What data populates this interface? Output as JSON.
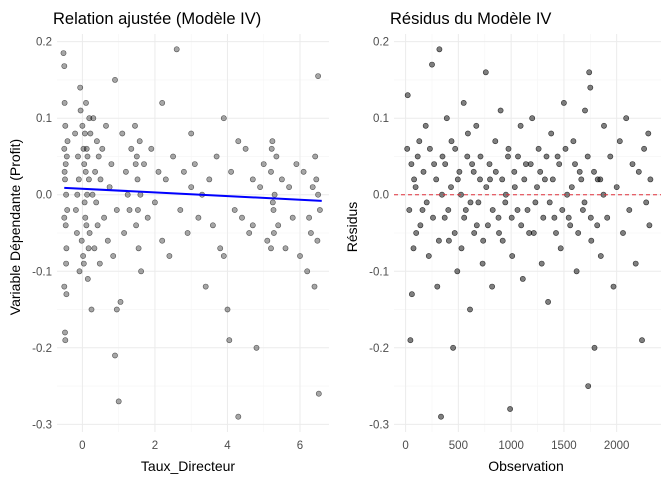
{
  "chart_data": [
    {
      "type": "scatter",
      "title": "Relation ajustée (Modèle IV)",
      "xlabel": "Taux_Directeur",
      "ylabel": "Variable Dépendante (Profit)",
      "xlim": [
        -0.7,
        6.8
      ],
      "ylim": [
        -0.31,
        0.21
      ],
      "xticks": [
        0,
        2,
        4,
        6
      ],
      "yticks": [
        -0.3,
        -0.2,
        -0.1,
        0.0,
        0.1,
        0.2
      ],
      "ytick_labels": [
        "-0.3",
        "-0.2",
        "-0.1",
        "0.0",
        "0.1",
        "0.2"
      ],
      "grid": true,
      "point_color": "#000000",
      "point_alpha": 0.35,
      "fit_line": {
        "x": [
          -0.5,
          6.6
        ],
        "y": [
          0.009,
          -0.008
        ],
        "color": "#0000ff"
      },
      "points": [
        [
          -0.52,
          0.185
        ],
        [
          -0.5,
          0.168
        ],
        [
          -0.48,
          -0.18
        ],
        [
          -0.47,
          -0.19
        ],
        [
          -0.5,
          0.06
        ],
        [
          -0.49,
          0.03
        ],
        [
          -0.46,
          -0.04
        ],
        [
          -0.45,
          0.0
        ],
        [
          -0.47,
          0.09
        ],
        [
          -0.44,
          -0.07
        ],
        [
          -0.5,
          -0.12
        ],
        [
          -0.43,
          0.05
        ],
        [
          -0.49,
          0.12
        ],
        [
          -0.42,
          -0.02
        ],
        [
          -0.48,
          0.02
        ],
        [
          -0.45,
          -0.09
        ],
        [
          -0.41,
          0.07
        ],
        [
          -0.5,
          -0.03
        ],
        [
          -0.46,
          0.04
        ],
        [
          -0.44,
          -0.13
        ],
        [
          -0.2,
          0.08
        ],
        [
          -0.15,
          -0.05
        ],
        [
          -0.1,
          0.02
        ],
        [
          -0.05,
          0.11
        ],
        [
          -0.08,
          -0.1
        ],
        [
          -0.12,
          0.05
        ],
        [
          -0.18,
          -0.02
        ],
        [
          -0.02,
          -0.06
        ],
        [
          -0.06,
          0.14
        ],
        [
          -0.14,
          0.0
        ],
        [
          0.0,
          0.09
        ],
        [
          0.02,
          -0.08
        ],
        [
          0.05,
          0.04
        ],
        [
          0.08,
          -0.03
        ],
        [
          0.1,
          0.12
        ],
        [
          0.12,
          0.06
        ],
        [
          0.15,
          -0.11
        ],
        [
          0.18,
          0.02
        ],
        [
          0.2,
          -0.05
        ],
        [
          0.22,
          0.08
        ],
        [
          0.25,
          -0.15
        ],
        [
          0.28,
          0.0
        ],
        [
          0.3,
          0.1
        ],
        [
          0.33,
          -0.07
        ],
        [
          0.35,
          0.03
        ],
        [
          0.38,
          -0.01
        ],
        [
          0.4,
          0.07
        ],
        [
          0.42,
          -0.04
        ],
        [
          0.45,
          0.05
        ],
        [
          0.48,
          -0.09
        ],
        [
          0.5,
          0.02
        ],
        [
          0.55,
          0.06
        ],
        [
          0.6,
          -0.03
        ],
        [
          0.65,
          0.09
        ],
        [
          0.7,
          -0.06
        ],
        [
          0.75,
          0.01
        ],
        [
          0.8,
          0.04
        ],
        [
          0.85,
          -0.08
        ],
        [
          0.9,
          0.15
        ],
        [
          0.95,
          -0.02
        ],
        [
          0.03,
          0.06
        ],
        [
          0.06,
          -0.01
        ],
        [
          0.09,
          0.03
        ],
        [
          0.11,
          -0.04
        ],
        [
          0.14,
          0.05
        ],
        [
          0.17,
          -0.07
        ],
        [
          0.19,
          0.1
        ],
        [
          0.04,
          -0.09
        ],
        [
          0.07,
          0.08
        ],
        [
          0.13,
          0.0
        ],
        [
          0.9,
          -0.21
        ],
        [
          0.95,
          -0.15
        ],
        [
          1.0,
          -0.27
        ],
        [
          1.05,
          -0.14
        ],
        [
          1.1,
          0.08
        ],
        [
          1.15,
          -0.05
        ],
        [
          1.2,
          0.03
        ],
        [
          1.25,
          0.0
        ],
        [
          1.3,
          -0.02
        ],
        [
          1.35,
          0.06
        ],
        [
          1.45,
          0.09
        ],
        [
          1.48,
          -0.04
        ],
        [
          1.5,
          0.05
        ],
        [
          1.52,
          0.02
        ],
        [
          1.55,
          -0.07
        ],
        [
          1.58,
          0.07
        ],
        [
          1.6,
          0.0
        ],
        [
          1.62,
          -0.1
        ],
        [
          1.47,
          0.04
        ],
        [
          1.53,
          -0.02
        ],
        [
          1.7,
          0.04
        ],
        [
          1.8,
          -0.03
        ],
        [
          1.9,
          0.06
        ],
        [
          2.0,
          -0.01
        ],
        [
          2.1,
          0.03
        ],
        [
          2.2,
          -0.06
        ],
        [
          2.3,
          0.02
        ],
        [
          2.4,
          -0.08
        ],
        [
          2.5,
          0.05
        ],
        [
          2.6,
          0.19
        ],
        [
          2.7,
          -0.02
        ],
        [
          2.8,
          0.03
        ],
        [
          2.9,
          -0.05
        ],
        [
          3.0,
          0.01
        ],
        [
          3.1,
          0.04
        ],
        [
          3.2,
          -0.03
        ],
        [
          3.3,
          0.0
        ],
        [
          3.4,
          -0.12
        ],
        [
          3.5,
          0.02
        ],
        [
          3.6,
          -0.04
        ],
        [
          3.7,
          0.05
        ],
        [
          3.8,
          -0.07
        ],
        [
          3.9,
          0.1
        ],
        [
          4.0,
          -0.15
        ],
        [
          4.05,
          -0.19
        ],
        [
          4.1,
          0.03
        ],
        [
          4.2,
          -0.02
        ],
        [
          4.3,
          -0.29
        ],
        [
          4.4,
          -0.03
        ],
        [
          4.5,
          0.06
        ],
        [
          4.6,
          -0.05
        ],
        [
          4.7,
          0.02
        ],
        [
          4.8,
          -0.2
        ],
        [
          4.9,
          0.01
        ],
        [
          5.0,
          0.04
        ],
        [
          5.1,
          -0.06
        ],
        [
          5.2,
          0.03
        ],
        [
          5.25,
          -0.01
        ],
        [
          5.3,
          0.0
        ],
        [
          5.35,
          0.05
        ],
        [
          5.4,
          -0.04
        ],
        [
          5.5,
          0.02
        ],
        [
          5.6,
          -0.07
        ],
        [
          5.7,
          0.01
        ],
        [
          5.8,
          -0.03
        ],
        [
          5.9,
          0.04
        ],
        [
          6.0,
          -0.08
        ],
        [
          6.1,
          0.03
        ],
        [
          6.2,
          -0.1
        ],
        [
          6.3,
          -0.05
        ],
        [
          6.4,
          -0.12
        ],
        [
          6.5,
          0.155
        ],
        [
          6.52,
          -0.26
        ],
        [
          6.45,
          0.02
        ],
        [
          6.55,
          -0.02
        ],
        [
          6.5,
          0.0
        ],
        [
          6.42,
          0.05
        ],
        [
          6.48,
          -0.06
        ],
        [
          6.35,
          0.01
        ],
        [
          6.25,
          -0.03
        ],
        [
          5.2,
          -0.07
        ],
        [
          5.22,
          0.06
        ],
        [
          5.28,
          -0.05
        ],
        [
          5.24,
          0.07
        ],
        [
          5.27,
          -0.02
        ],
        [
          3.9,
          -0.08
        ],
        [
          4.3,
          0.07
        ],
        [
          4.7,
          -0.04
        ],
        [
          3.0,
          0.08
        ],
        [
          2.2,
          0.12
        ]
      ]
    },
    {
      "type": "scatter",
      "title": "Résidus du Modèle IV",
      "xlabel": "Observation",
      "ylabel": "Résidus",
      "xlim": [
        -110,
        2420
      ],
      "ylim": [
        -0.31,
        0.21
      ],
      "xticks": [
        0,
        500,
        1000,
        1500,
        2000
      ],
      "yticks": [
        -0.3,
        -0.2,
        -0.1,
        0.0,
        0.1,
        0.2
      ],
      "ytick_labels": [
        "-0.3",
        "-0.2",
        "-0.1",
        "0.0",
        "0.1",
        "0.2"
      ],
      "grid": true,
      "point_color": "#000000",
      "point_alpha": 0.5,
      "reference_line": {
        "y": 0,
        "color": "#e0303b",
        "style": "dashed"
      },
      "points": [
        [
          20,
          0.13
        ],
        [
          45,
          -0.19
        ],
        [
          60,
          -0.13
        ],
        [
          80,
          0.02
        ],
        [
          100,
          -0.05
        ],
        [
          130,
          0.07
        ],
        [
          160,
          -0.02
        ],
        [
          190,
          0.09
        ],
        [
          220,
          -0.08
        ],
        [
          250,
          0.17
        ],
        [
          270,
          0.04
        ],
        [
          300,
          -0.12
        ],
        [
          320,
          0.19
        ],
        [
          335,
          -0.29
        ],
        [
          350,
          0.05
        ],
        [
          370,
          -0.03
        ],
        [
          390,
          0.1
        ],
        [
          410,
          -0.06
        ],
        [
          430,
          0.01
        ],
        [
          450,
          -0.2
        ],
        [
          470,
          0.06
        ],
        [
          490,
          -0.1
        ],
        [
          510,
          0.03
        ],
        [
          530,
          -0.07
        ],
        [
          550,
          0.12
        ],
        [
          570,
          -0.02
        ],
        [
          590,
          0.08
        ],
        [
          610,
          -0.15
        ],
        [
          630,
          0.04
        ],
        [
          650,
          -0.05
        ],
        [
          670,
          0.09
        ],
        [
          690,
          -0.01
        ],
        [
          710,
          0.05
        ],
        [
          730,
          -0.09
        ],
        [
          760,
          0.16
        ],
        [
          780,
          -0.04
        ],
        [
          800,
          0.02
        ],
        [
          820,
          -0.12
        ],
        [
          850,
          0.07
        ],
        [
          880,
          -0.03
        ],
        [
          900,
          0.11
        ],
        [
          920,
          -0.06
        ],
        [
          950,
          0.0
        ],
        [
          970,
          0.05
        ],
        [
          990,
          -0.28
        ],
        [
          1010,
          -0.08
        ],
        [
          1030,
          0.03
        ],
        [
          1060,
          -0.02
        ],
        [
          1090,
          0.09
        ],
        [
          1110,
          -0.11
        ],
        [
          1140,
          0.04
        ],
        [
          1170,
          -0.05
        ],
        [
          1200,
          0.1
        ],
        [
          1230,
          -0.01
        ],
        [
          1260,
          0.06
        ],
        [
          1290,
          -0.09
        ],
        [
          1320,
          0.02
        ],
        [
          1350,
          -0.14
        ],
        [
          1380,
          0.08
        ],
        [
          1410,
          -0.03
        ],
        [
          1440,
          0.05
        ],
        [
          1470,
          -0.07
        ],
        [
          1500,
          0.12
        ],
        [
          1530,
          0.0
        ],
        [
          1560,
          -0.04
        ],
        [
          1590,
          0.07
        ],
        [
          1620,
          -0.1
        ],
        [
          1650,
          0.03
        ],
        [
          1680,
          -0.02
        ],
        [
          1700,
          0.11
        ],
        [
          1730,
          -0.25
        ],
        [
          1740,
          0.16
        ],
        [
          1750,
          0.14
        ],
        [
          1760,
          -0.06
        ],
        [
          1790,
          -0.2
        ],
        [
          1820,
          0.02
        ],
        [
          1850,
          -0.08
        ],
        [
          1880,
          0.09
        ],
        [
          1910,
          -0.03
        ],
        [
          1940,
          0.05
        ],
        [
          1970,
          -0.12
        ],
        [
          2000,
          0.01
        ],
        [
          2030,
          0.07
        ],
        [
          2060,
          -0.05
        ],
        [
          2090,
          0.1
        ],
        [
          2120,
          -0.02
        ],
        [
          2150,
          0.04
        ],
        [
          2180,
          -0.09
        ],
        [
          2210,
          0.03
        ],
        [
          2240,
          -0.19
        ],
        [
          2260,
          0.06
        ],
        [
          2280,
          -0.01
        ],
        [
          2300,
          0.08
        ],
        [
          2310,
          -0.04
        ],
        [
          2320,
          0.02
        ],
        [
          15,
          0.06
        ],
        [
          35,
          -0.02
        ],
        [
          55,
          0.04
        ],
        [
          75,
          -0.07
        ],
        [
          95,
          0.01
        ],
        [
          115,
          0.05
        ],
        [
          140,
          -0.04
        ],
        [
          170,
          0.03
        ],
        [
          200,
          -0.01
        ],
        [
          230,
          0.06
        ],
        [
          260,
          -0.03
        ],
        [
          290,
          0.02
        ],
        [
          315,
          -0.06
        ],
        [
          345,
          0.0
        ],
        [
          375,
          0.04
        ],
        [
          405,
          -0.02
        ],
        [
          435,
          0.07
        ],
        [
          465,
          -0.05
        ],
        [
          495,
          0.02
        ],
        [
          525,
          0.0
        ],
        [
          555,
          -0.03
        ],
        [
          585,
          0.05
        ],
        [
          615,
          -0.01
        ],
        [
          645,
          0.03
        ],
        [
          675,
          -0.04
        ],
        [
          705,
          0.02
        ],
        [
          735,
          -0.06
        ],
        [
          765,
          0.01
        ],
        [
          795,
          0.04
        ],
        [
          825,
          -0.02
        ],
        [
          855,
          0.03
        ],
        [
          885,
          -0.05
        ],
        [
          915,
          0.02
        ],
        [
          945,
          -0.01
        ],
        [
          975,
          0.06
        ],
        [
          1005,
          -0.03
        ],
        [
          1035,
          0.01
        ],
        [
          1065,
          0.05
        ],
        [
          1095,
          -0.04
        ],
        [
          1125,
          0.02
        ],
        [
          1155,
          -0.02
        ],
        [
          1185,
          0.04
        ],
        [
          1215,
          -0.05
        ],
        [
          1245,
          0.01
        ],
        [
          1275,
          0.03
        ],
        [
          1305,
          -0.03
        ],
        [
          1335,
          0.05
        ],
        [
          1365,
          -0.01
        ],
        [
          1395,
          0.02
        ],
        [
          1425,
          -0.05
        ],
        [
          1455,
          0.04
        ],
        [
          1485,
          -0.02
        ],
        [
          1515,
          0.06
        ],
        [
          1545,
          -0.03
        ],
        [
          1575,
          0.01
        ],
        [
          1605,
          0.04
        ],
        [
          1635,
          -0.05
        ],
        [
          1665,
          0.02
        ],
        [
          1695,
          -0.01
        ],
        [
          1725,
          0.05
        ],
        [
          1755,
          -0.03
        ],
        [
          1785,
          0.03
        ],
        [
          1815,
          -0.04
        ],
        [
          1845,
          0.02
        ],
        [
          1875,
          0.0
        ]
      ]
    }
  ]
}
